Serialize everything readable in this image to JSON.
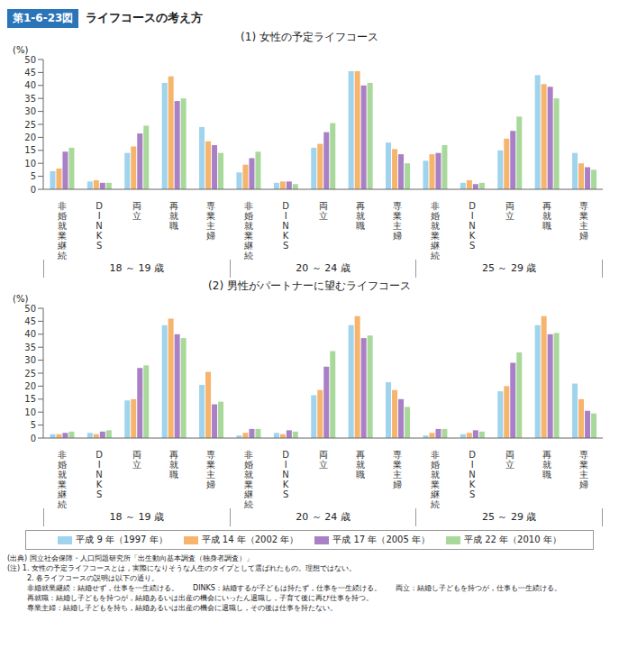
{
  "figure_label": "第1-6-23図",
  "figure_title": "ライフコースの考え方",
  "chart_data": [
    {
      "type": "bar",
      "title": "(1) 女性の予定ライフコース",
      "y_label": "(%)",
      "categories": [
        "非婚就業継続",
        "DINKS",
        "両立",
        "再就職",
        "専業主婦",
        "非婚就業継続",
        "DINKS",
        "両立",
        "再就職",
        "専業主婦",
        "非婚就業継続",
        "DINKS",
        "両立",
        "再就職",
        "専業主婦"
      ],
      "groups": [
        "18 ～ 19 歳",
        "20 ～ 24 歳",
        "25 ～ 29 歳"
      ],
      "ylim": [
        0,
        50
      ],
      "yticks": [
        0,
        5,
        10,
        15,
        20,
        25,
        30,
        35,
        40,
        45,
        50
      ],
      "grid": false,
      "series": [
        {
          "name": "平成 9 年（1997 年）",
          "color": "#9fd4ec",
          "values": [
            7,
            3,
            14,
            41,
            24,
            6.5,
            2.5,
            16,
            45.5,
            18,
            11,
            2.5,
            15,
            44,
            14
          ]
        },
        {
          "name": "平成 14 年（2002 年）",
          "color": "#f6b46c",
          "values": [
            8,
            3.5,
            16.5,
            43.5,
            18.5,
            9.5,
            3,
            17.5,
            45.5,
            15.5,
            13.5,
            3.5,
            19.5,
            40.5,
            10
          ]
        },
        {
          "name": "平成 17 年（2005 年）",
          "color": "#a97fc6",
          "values": [
            14.5,
            2.5,
            21.5,
            34,
            17,
            12,
            3,
            22,
            40,
            13.5,
            14,
            2,
            22.5,
            39.5,
            8.5
          ]
        },
        {
          "name": "平成 22 年（2010 年）",
          "color": "#a8d99b",
          "values": [
            16,
            2.5,
            24.5,
            35,
            14,
            14.5,
            2,
            25.5,
            41,
            10,
            17,
            2.5,
            28,
            35,
            7.5
          ]
        }
      ]
    },
    {
      "type": "bar",
      "title": "(2) 男性がパートナーに望むライフコース",
      "y_label": "(%)",
      "categories": [
        "非婚就業継続",
        "DINKS",
        "両立",
        "再就職",
        "専業主婦",
        "非婚就業継続",
        "DINKS",
        "両立",
        "再就職",
        "専業主婦",
        "非婚就業継続",
        "DINKS",
        "両立",
        "再就職",
        "専業主婦"
      ],
      "groups": [
        "18 ～ 19 歳",
        "20 ～ 24 歳",
        "25 ～ 29 歳"
      ],
      "ylim": [
        0,
        50
      ],
      "yticks": [
        0,
        5,
        10,
        15,
        20,
        25,
        30,
        35,
        40,
        45,
        50
      ],
      "grid": false,
      "legend": "bottom",
      "series": [
        {
          "name": "平成 9 年（1997 年）",
          "color": "#9fd4ec",
          "values": [
            1.5,
            2,
            14.5,
            43.5,
            20.5,
            1,
            2,
            16.5,
            43.5,
            21.5,
            1,
            1.5,
            18,
            43.5,
            21
          ]
        },
        {
          "name": "平成 14 年（2002 年）",
          "color": "#f6b46c",
          "values": [
            1.5,
            1.5,
            15,
            46,
            25.5,
            2,
            1.5,
            18.5,
            47,
            18.5,
            2,
            2,
            20,
            47,
            15
          ]
        },
        {
          "name": "平成 17 年（2005 年）",
          "color": "#a97fc6",
          "values": [
            2,
            2.5,
            27,
            40,
            13,
            3.5,
            3,
            27.5,
            38.5,
            15,
            3.5,
            3,
            29,
            40,
            10.5
          ]
        },
        {
          "name": "平成 22 年（2010 年）",
          "color": "#a8d99b",
          "values": [
            2.5,
            3,
            28,
            38.5,
            14,
            3.5,
            2.5,
            33.5,
            39.5,
            12,
            3.5,
            2.5,
            33,
            40.5,
            9.5
          ]
        }
      ]
    }
  ],
  "notes": [
    "(出典) 国立社会保障・人口問題研究所「出生動向基本調査（独身者調査）」",
    "(注) 1. 女性の予定ライフコースとは，実際になりそうな人生のタイプとして選ばれたもの。理想ではない。",
    "2. 各ライフコースの説明は以下の通り。",
    "非婚就業継続：結婚せず，仕事を一生続ける。　　DINKS：結婚するが子どもは持たず，仕事を一生続ける。　　両立：結婚し子どもを持つが，仕事も一生続ける。",
    "再就職：結婚し子どもを持つが，結婚あるいは出産の機会にいったん退職し，子育て後に再び仕事を持つ。",
    "専業主婦：結婚し子どもを持ち，結婚あるいは出産の機会に退職し，その後は仕事を持たない。"
  ]
}
